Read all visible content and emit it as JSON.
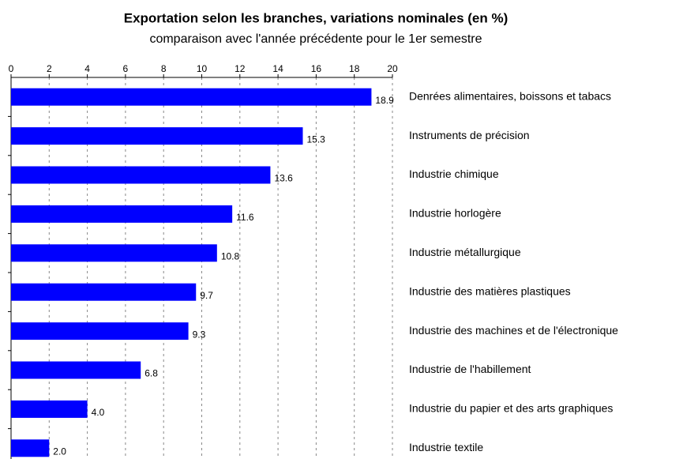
{
  "chart_data": {
    "type": "bar",
    "orientation": "horizontal",
    "title": "Exportation selon les branches, variations nominales (en %)",
    "subtitle": "comparaison avec l'année précédente pour le 1er semestre",
    "categories": [
      "Denrées alimentaires, boissons et tabacs",
      "Instruments de précision",
      "Industrie chimique",
      "Industrie horlogère",
      "Industrie métallurgique",
      "Industrie des matières plastiques",
      "Industrie des machines et de l'électronique",
      "Industrie de l'habillement",
      "Industrie du papier et des arts graphiques",
      "Industrie textile"
    ],
    "values": [
      18.9,
      15.3,
      13.6,
      11.6,
      10.8,
      9.7,
      9.3,
      6.8,
      4.0,
      2.0
    ],
    "value_labels": [
      "18.9",
      "15.3",
      "13.6",
      "11.6",
      "10.8",
      "9.7",
      "9.3",
      "6.8",
      "4.0",
      "2.0"
    ],
    "color": "#0000ff",
    "xlim": [
      0,
      20
    ],
    "xticks": [
      0,
      2,
      4,
      6,
      8,
      10,
      12,
      14,
      16,
      18,
      20
    ],
    "grid": true
  }
}
